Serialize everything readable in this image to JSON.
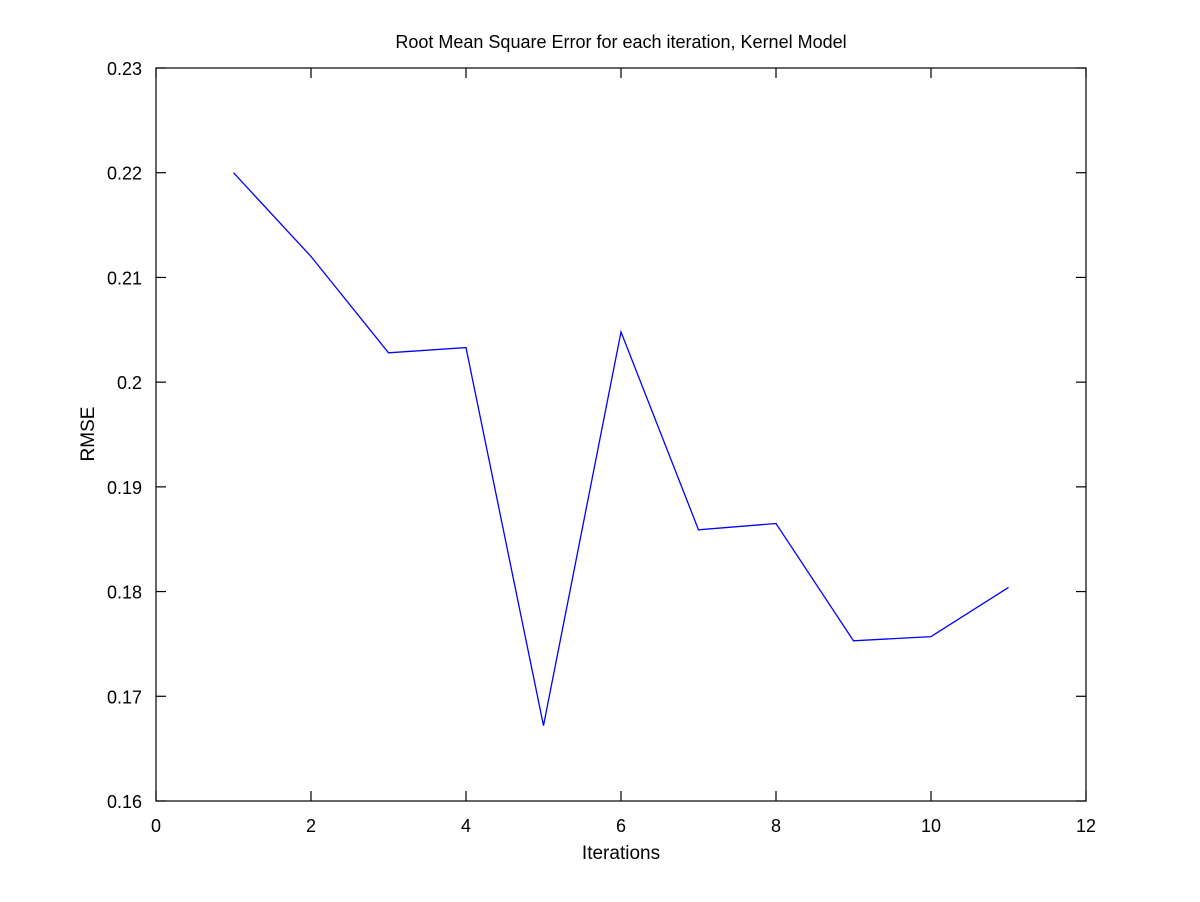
{
  "chart_data": {
    "type": "line",
    "title": "Root Mean Square Error for each iteration, Kernel Model",
    "xlabel": "Iterations",
    "ylabel": "RMSE",
    "xlim": [
      0,
      12
    ],
    "ylim": [
      0.16,
      0.23
    ],
    "xticks": [
      "0",
      "2",
      "4",
      "6",
      "8",
      "10",
      "12"
    ],
    "yticks": [
      "0.16",
      "0.17",
      "0.18",
      "0.19",
      "0.2",
      "0.21",
      "0.22",
      "0.23"
    ],
    "grid": false,
    "series": [
      {
        "color": "#0000ff",
        "x": [
          1,
          2,
          3,
          4,
          5,
          6,
          7,
          8,
          9,
          10,
          11
        ],
        "y": [
          0.22,
          0.212,
          0.2028,
          0.2033,
          0.1672,
          0.2048,
          0.1859,
          0.1865,
          0.1753,
          0.1757,
          0.1804
        ]
      }
    ]
  }
}
